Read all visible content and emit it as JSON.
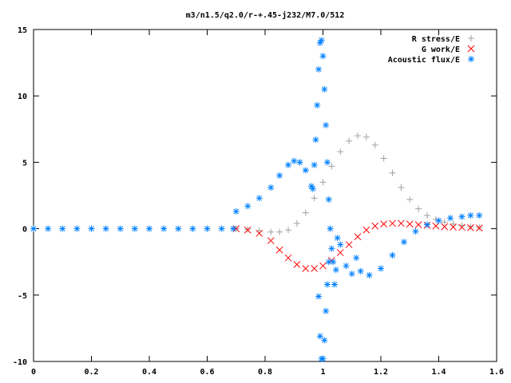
{
  "chart_data": {
    "type": "scatter",
    "title": "m3/n1.5/q2.0/r-+.45-j232/M7.0/512",
    "xlabel": "",
    "ylabel": "",
    "xlim": [
      0,
      1.6
    ],
    "ylim": [
      -10,
      15
    ],
    "xticks": [
      0,
      0.2,
      0.4,
      0.6,
      0.8,
      1,
      1.2,
      1.4,
      1.6
    ],
    "yticks": [
      -10,
      -5,
      0,
      5,
      10,
      15
    ],
    "xtick_labels": [
      "0",
      "0.2",
      "0.4",
      "0.6",
      "0.8",
      "1",
      "1.2",
      "1.4",
      "1.6"
    ],
    "ytick_labels": [
      "-10",
      "-5",
      "0",
      "5",
      "10",
      "15"
    ],
    "grid": false,
    "legend_position": "top-right",
    "series": [
      {
        "name": "R stress/E",
        "marker": "plus",
        "color": "#a0a0a0",
        "points": [
          [
            0.7,
            0.0
          ],
          [
            0.74,
            -0.05
          ],
          [
            0.78,
            -0.15
          ],
          [
            0.82,
            -0.25
          ],
          [
            0.85,
            -0.25
          ],
          [
            0.88,
            -0.1
          ],
          [
            0.91,
            0.4
          ],
          [
            0.94,
            1.2
          ],
          [
            0.97,
            2.3
          ],
          [
            1.0,
            3.5
          ],
          [
            1.03,
            4.7
          ],
          [
            1.06,
            5.8
          ],
          [
            1.09,
            6.6
          ],
          [
            1.12,
            7.0
          ],
          [
            1.15,
            6.9
          ],
          [
            1.18,
            6.3
          ],
          [
            1.21,
            5.3
          ],
          [
            1.24,
            4.2
          ],
          [
            1.27,
            3.1
          ],
          [
            1.3,
            2.2
          ],
          [
            1.33,
            1.5
          ],
          [
            1.36,
            1.0
          ],
          [
            1.39,
            0.7
          ],
          [
            1.42,
            0.5
          ],
          [
            1.45,
            0.35
          ],
          [
            1.48,
            0.25
          ],
          [
            1.51,
            0.15
          ],
          [
            1.54,
            0.1
          ]
        ]
      },
      {
        "name": "G work/E",
        "marker": "cross",
        "color": "#ff0000",
        "points": [
          [
            0.7,
            0.0
          ],
          [
            0.74,
            -0.1
          ],
          [
            0.78,
            -0.35
          ],
          [
            0.82,
            -0.9
          ],
          [
            0.85,
            -1.6
          ],
          [
            0.88,
            -2.2
          ],
          [
            0.91,
            -2.7
          ],
          [
            0.94,
            -3.0
          ],
          [
            0.97,
            -3.0
          ],
          [
            1.0,
            -2.8
          ],
          [
            1.03,
            -2.4
          ],
          [
            1.06,
            -1.8
          ],
          [
            1.09,
            -1.2
          ],
          [
            1.12,
            -0.6
          ],
          [
            1.15,
            -0.1
          ],
          [
            1.18,
            0.2
          ],
          [
            1.21,
            0.35
          ],
          [
            1.24,
            0.4
          ],
          [
            1.27,
            0.4
          ],
          [
            1.3,
            0.35
          ],
          [
            1.33,
            0.3
          ],
          [
            1.36,
            0.25
          ],
          [
            1.39,
            0.2
          ],
          [
            1.42,
            0.15
          ],
          [
            1.45,
            0.12
          ],
          [
            1.48,
            0.1
          ],
          [
            1.51,
            0.08
          ],
          [
            1.54,
            0.05
          ]
        ]
      },
      {
        "name": "Acoustic flux/E",
        "marker": "star",
        "color": "#0080ff",
        "points": [
          [
            0.0,
            0.0
          ],
          [
            0.05,
            0.0
          ],
          [
            0.1,
            0.0
          ],
          [
            0.15,
            0.0
          ],
          [
            0.2,
            0.0
          ],
          [
            0.25,
            0.0
          ],
          [
            0.3,
            0.0
          ],
          [
            0.35,
            0.0
          ],
          [
            0.4,
            0.0
          ],
          [
            0.45,
            0.0
          ],
          [
            0.5,
            0.0
          ],
          [
            0.55,
            0.0
          ],
          [
            0.6,
            0.0
          ],
          [
            0.65,
            0.0
          ],
          [
            0.69,
            0.0
          ],
          [
            0.7,
            1.3
          ],
          [
            0.74,
            1.7
          ],
          [
            0.78,
            2.3
          ],
          [
            0.82,
            3.1
          ],
          [
            0.85,
            4.0
          ],
          [
            0.88,
            4.8
          ],
          [
            0.9,
            5.1
          ],
          [
            0.92,
            5.0
          ],
          [
            0.94,
            4.4
          ],
          [
            0.96,
            3.2
          ],
          [
            0.965,
            3.0
          ],
          [
            0.97,
            4.8
          ],
          [
            0.975,
            6.7
          ],
          [
            0.98,
            9.3
          ],
          [
            0.985,
            12.0
          ],
          [
            0.99,
            14.0
          ],
          [
            0.995,
            14.2
          ],
          [
            1.0,
            13.0
          ],
          [
            1.005,
            10.5
          ],
          [
            1.01,
            7.8
          ],
          [
            1.015,
            5.0
          ],
          [
            1.02,
            2.2
          ],
          [
            1.025,
            0.0
          ],
          [
            1.03,
            -1.5
          ],
          [
            1.035,
            -2.5
          ],
          [
            1.04,
            -4.2
          ],
          [
            1.045,
            -3.1
          ],
          [
            0.985,
            -5.1
          ],
          [
            0.99,
            -8.1
          ],
          [
            0.995,
            -9.8
          ],
          [
            1.0,
            -9.8
          ],
          [
            1.005,
            -8.4
          ],
          [
            1.01,
            -6.2
          ],
          [
            1.015,
            -4.2
          ],
          [
            1.02,
            -2.5
          ],
          [
            1.05,
            -0.7
          ],
          [
            1.06,
            -1.2
          ],
          [
            1.08,
            -2.8
          ],
          [
            1.1,
            -3.4
          ],
          [
            1.115,
            -2.2
          ],
          [
            1.13,
            -3.2
          ],
          [
            1.16,
            -3.5
          ],
          [
            1.2,
            -3.0
          ],
          [
            1.24,
            -2.0
          ],
          [
            1.28,
            -1.0
          ],
          [
            1.32,
            -0.2
          ],
          [
            1.36,
            0.3
          ],
          [
            1.4,
            0.6
          ],
          [
            1.44,
            0.8
          ],
          [
            1.48,
            0.9
          ],
          [
            1.51,
            1.0
          ],
          [
            1.54,
            1.0
          ]
        ]
      }
    ]
  }
}
